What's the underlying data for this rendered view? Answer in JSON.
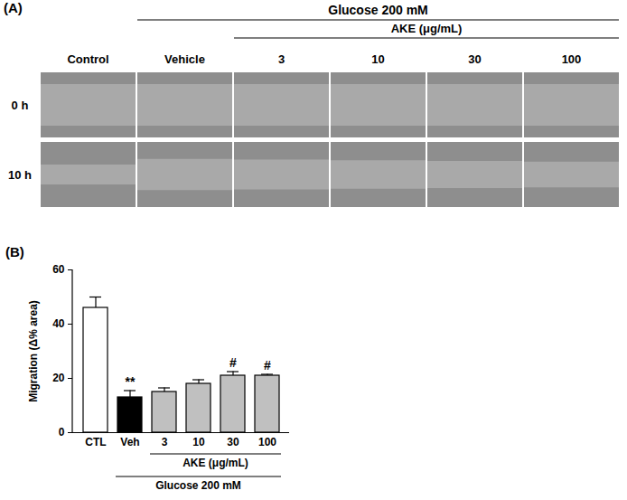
{
  "figure_a": {
    "label": "(A)",
    "header": "Glucose 200 mM",
    "subheader": "AKE (μg/mL)",
    "columns": [
      "Control",
      "Vehicle",
      "3",
      "10",
      "30",
      "100"
    ],
    "rows": [
      "0 h",
      "10 h"
    ]
  },
  "chart_data": {
    "type": "bar",
    "label": "(B)",
    "categories": [
      "CTL",
      "Veh",
      "3",
      "10",
      "30",
      "100"
    ],
    "values": [
      46,
      13,
      15,
      18,
      21,
      21
    ],
    "errors": [
      4,
      2.5,
      1.5,
      1.5,
      1.5,
      0.5
    ],
    "colors": [
      "#ffffff",
      "#000000",
      "#c0c0c0",
      "#c0c0c0",
      "#c0c0c0",
      "#c0c0c0"
    ],
    "y_label": "Migration (Δ% area)",
    "ylim": [
      0,
      60
    ],
    "yticks": [
      0,
      20,
      40,
      60
    ],
    "annotations": [
      {
        "category": "Veh",
        "text": "**"
      },
      {
        "category": "30",
        "text": "#"
      },
      {
        "category": "100",
        "text": "#"
      }
    ],
    "groups": [
      {
        "text": "AKE (μg/mL)",
        "from": "3",
        "to": "100"
      },
      {
        "text": "Glucose 200 mM",
        "from": "Veh",
        "to": "100"
      }
    ]
  }
}
